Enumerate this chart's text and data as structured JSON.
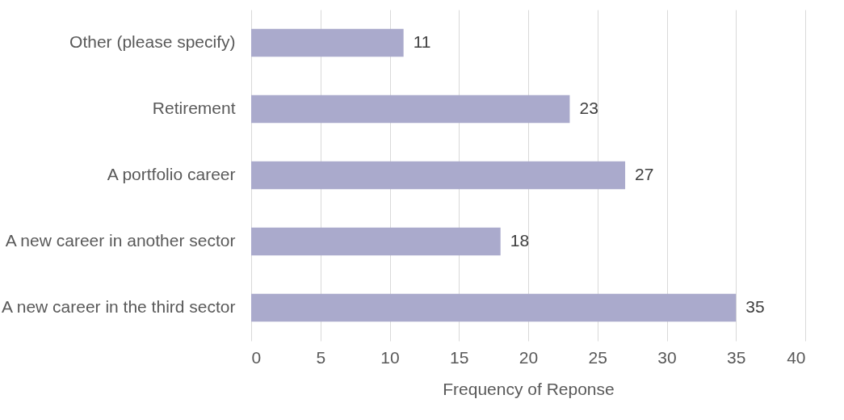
{
  "chart_data": {
    "type": "bar",
    "orientation": "horizontal",
    "categories": [
      "Other (please specify)",
      "Retirement",
      "A portfolio career",
      "A new career in another sector",
      "A new career in the third sector"
    ],
    "values": [
      11,
      23,
      27,
      18,
      35
    ],
    "color": "#aaaacc",
    "xlim": [
      0,
      40
    ],
    "xticks": [
      0,
      5,
      10,
      15,
      20,
      25,
      30,
      35,
      40
    ],
    "xlabel": "Frequency of Reponse",
    "grid": "x",
    "data_labels": true
  }
}
